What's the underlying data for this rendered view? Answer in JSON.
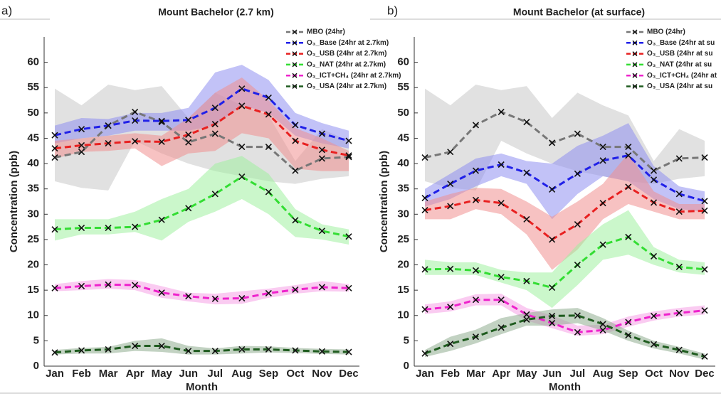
{
  "chart_data": [
    {
      "type": "line",
      "panel_label": "a)",
      "title": "Mount Bachelor (2.7 km)",
      "xlabel": "Month",
      "ylabel": "Concentration (ppb)",
      "categories": [
        "Jan",
        "Feb",
        "Mar",
        "Apr",
        "May",
        "Jun",
        "Jul",
        "Aug",
        "Sep",
        "Oct",
        "Nov",
        "Dec"
      ],
      "ylim": [
        0,
        65
      ],
      "yticks": [
        0,
        5,
        10,
        15,
        20,
        25,
        30,
        35,
        40,
        45,
        50,
        55,
        60
      ],
      "legend": "upper right",
      "series": [
        {
          "name": "MBO (24hr)",
          "color": "#777777",
          "band_color": "#c8c8c8",
          "values": [
            41.2,
            42.3,
            47.5,
            50.2,
            48.2,
            44.2,
            45.9,
            43.3,
            43.3,
            38.6,
            41.0,
            41.3
          ],
          "low": [
            36.5,
            35.2,
            34.7,
            44.5,
            42,
            40,
            38.5,
            37.5,
            36.5,
            36,
            37,
            37.5
          ],
          "high": [
            54.8,
            51.5,
            55.6,
            54.5,
            55.3,
            49,
            54,
            51.5,
            49.5,
            40.5,
            46.8,
            44.5
          ]
        },
        {
          "name": "O₃_Base (24hr at 2.7km)",
          "color": "#2020e8",
          "band_color": "#8f8ff0",
          "values": [
            45.6,
            46.8,
            47.5,
            48.5,
            48.4,
            48.6,
            51.0,
            54.8,
            53.0,
            47.6,
            45.9,
            44.5
          ],
          "low": [
            44,
            45,
            45.5,
            46.5,
            46.5,
            46.5,
            47.5,
            51.5,
            50,
            45.5,
            44,
            43
          ],
          "high": [
            47.5,
            49,
            48.8,
            50,
            50,
            51,
            58,
            59.5,
            56.5,
            50,
            48,
            46.5
          ]
        },
        {
          "name": "O₃_USB (24hr at 2.7km)",
          "color": "#e82020",
          "band_color": "#f09090",
          "values": [
            43.0,
            43.6,
            44.0,
            44.4,
            44.3,
            45.7,
            47.8,
            51.4,
            49.7,
            44.5,
            42.7,
            41.6
          ],
          "low": [
            41,
            42.3,
            42.5,
            43,
            39.5,
            42,
            42.5,
            46,
            45,
            39,
            38.5,
            38.5
          ],
          "high": [
            44.5,
            45,
            45.5,
            46,
            45.5,
            49,
            54,
            57,
            52.5,
            47,
            45,
            42.5
          ]
        },
        {
          "name": "O₃_NAT (24hr at 2.7km)",
          "color": "#33dd33",
          "band_color": "#a0f0a0",
          "values": [
            27.0,
            27.3,
            27.3,
            27.5,
            28.9,
            31.2,
            34.0,
            37.4,
            34.4,
            28.8,
            26.7,
            25.6
          ],
          "low": [
            24.8,
            26,
            26,
            26.5,
            24.8,
            28.5,
            30.5,
            33,
            30,
            25.5,
            25,
            24
          ],
          "high": [
            29,
            29,
            29,
            30.5,
            33,
            35,
            40,
            41.5,
            38,
            31,
            28,
            27
          ]
        },
        {
          "name": "O₃_ICT+CH₄ (24hr at 2.7km)",
          "color": "#ee22cc",
          "band_color": "#f5a0e6",
          "values": [
            15.4,
            15.8,
            16.1,
            16.0,
            14.5,
            13.8,
            13.3,
            13.4,
            14.4,
            15.1,
            15.6,
            15.4
          ],
          "low": [
            14.8,
            15,
            15.3,
            15,
            13.5,
            12.8,
            12.2,
            12.3,
            13.5,
            14.3,
            14.8,
            14.7
          ],
          "high": [
            16.2,
            16.8,
            17.2,
            17,
            15.8,
            14.5,
            14.3,
            14.8,
            15.3,
            16,
            16.8,
            16.2
          ]
        },
        {
          "name": "O₃_USA (24hr at 2.7km)",
          "color": "#1f5c1f",
          "band_color": "#8fad8f",
          "values": [
            2.7,
            3.1,
            3.3,
            4.0,
            4.0,
            3.0,
            3.0,
            3.3,
            3.3,
            3.1,
            2.9,
            2.8
          ],
          "low": [
            2.3,
            2.5,
            2.5,
            3,
            2.8,
            2.3,
            2.3,
            2.5,
            2.7,
            2.6,
            2.4,
            2.3
          ],
          "high": [
            3.2,
            3.6,
            3.8,
            5,
            5.5,
            4,
            3.5,
            4,
            3.9,
            3.6,
            3.4,
            3.3
          ]
        }
      ]
    },
    {
      "type": "line",
      "panel_label": "b)",
      "title": "Mount Bachelor (at surface)",
      "xlabel": "Month",
      "ylabel": "Concentration (ppb)",
      "categories": [
        "Jan",
        "Feb",
        "Mar",
        "Apr",
        "May",
        "Jun",
        "Jul",
        "Aug",
        "Sep",
        "Oct",
        "Nov",
        "Dec"
      ],
      "ylim": [
        0,
        65
      ],
      "yticks": [
        0,
        5,
        10,
        15,
        20,
        25,
        30,
        35,
        40,
        45,
        50,
        55,
        60
      ],
      "legend": "upper right",
      "series": [
        {
          "name": "MBO (24hr)",
          "color": "#777777",
          "band_color": "#c8c8c8",
          "values": [
            41.2,
            42.3,
            47.6,
            50.2,
            48.2,
            44.1,
            45.9,
            43.3,
            43.3,
            38.6,
            41.0,
            41.2
          ],
          "low": [
            36.5,
            35.2,
            34.7,
            44.5,
            42,
            40,
            38.5,
            37.5,
            36.5,
            36,
            37,
            37.5
          ],
          "high": [
            54.8,
            51.5,
            55.6,
            54.5,
            55.3,
            49,
            54,
            51.5,
            49.5,
            40.5,
            46.8,
            44.5
          ]
        },
        {
          "name": "O₃_Base (24hr at su",
          "color": "#2020e8",
          "band_color": "#8f8ff0",
          "values": [
            33.2,
            36.0,
            38.6,
            39.8,
            38.2,
            34.9,
            38.0,
            40.6,
            41.6,
            36.8,
            34.0,
            32.6
          ],
          "low": [
            31.5,
            33,
            35.5,
            37.5,
            36,
            29,
            34,
            37.5,
            36.5,
            33,
            31,
            30.5
          ],
          "high": [
            35,
            38,
            41,
            42,
            40.5,
            40,
            43.5,
            45.5,
            48,
            39.5,
            35.5,
            34.5
          ]
        },
        {
          "name": "O₃_USB (24hr at su",
          "color": "#e82020",
          "band_color": "#f09090",
          "values": [
            30.8,
            31.6,
            32.8,
            32.2,
            29.0,
            25.0,
            28.0,
            32.2,
            35.4,
            32.3,
            30.5,
            30.7
          ],
          "low": [
            29,
            29,
            31,
            30,
            26,
            19,
            23,
            29,
            32,
            30.5,
            29,
            29
          ],
          "high": [
            32.5,
            34,
            35.2,
            35,
            32.5,
            29.5,
            32.5,
            36,
            42,
            34.5,
            32,
            32
          ]
        },
        {
          "name": "O₃_NAT (24hr at su",
          "color": "#33dd33",
          "band_color": "#a0f0a0",
          "values": [
            19.1,
            19.2,
            18.9,
            17.6,
            16.8,
            15.5,
            20.0,
            24.0,
            25.5,
            21.7,
            19.6,
            19.1
          ],
          "low": [
            18,
            18,
            18,
            16.5,
            15,
            11.5,
            16,
            21,
            22,
            20,
            18.5,
            18
          ],
          "high": [
            21,
            20.5,
            20.5,
            19,
            18.5,
            18.5,
            24,
            28,
            30.8,
            23.5,
            21,
            20.5
          ]
        },
        {
          "name": "O₃_ICT+CH₄ (24hr at",
          "color": "#ee22cc",
          "band_color": "#f5a0e6",
          "values": [
            11.2,
            11.7,
            13.1,
            13.1,
            10.2,
            8.5,
            6.7,
            7.1,
            8.7,
            9.9,
            10.5,
            11.0
          ],
          "low": [
            10.3,
            10.8,
            12,
            12,
            9,
            7.5,
            6,
            6.3,
            7.8,
            9,
            9.8,
            10.2
          ],
          "high": [
            12.2,
            12.8,
            14.2,
            14.3,
            11.5,
            10,
            8,
            8.2,
            9.8,
            10.8,
            11.5,
            12
          ]
        },
        {
          "name": "O₃_USA (24hr at su",
          "color": "#1f5c1f",
          "band_color": "#8fad8f",
          "values": [
            2.5,
            4.4,
            5.8,
            7.6,
            9.2,
            9.9,
            10.0,
            8.3,
            6.1,
            4.3,
            3.2,
            1.9
          ],
          "low": [
            1.8,
            3,
            4.5,
            6.3,
            8,
            8,
            8.5,
            7,
            5,
            3.5,
            2.5,
            1.3
          ],
          "high": [
            3.2,
            5.8,
            7.2,
            9.5,
            10.5,
            11.2,
            11.5,
            9.5,
            7,
            5,
            3.8,
            2.5
          ]
        }
      ]
    }
  ]
}
